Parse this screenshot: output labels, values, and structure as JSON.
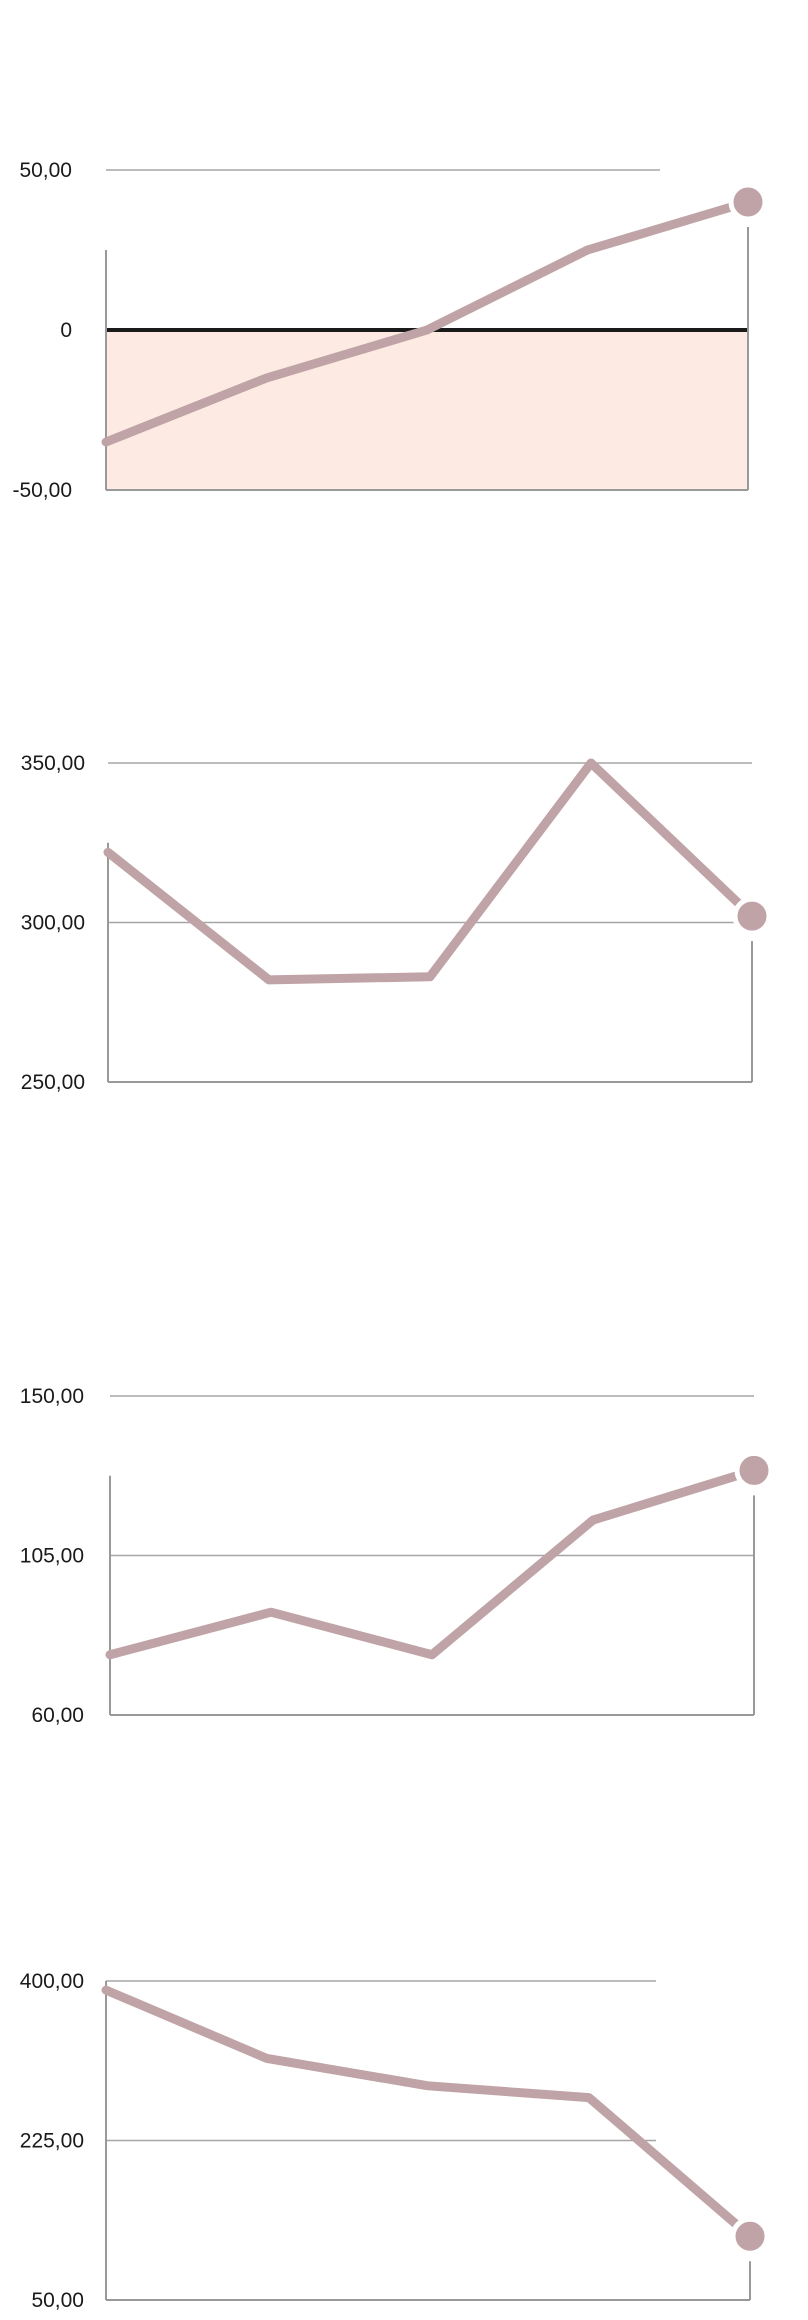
{
  "colors": {
    "line": "#bfa3a6",
    "grid": "#a6a6a6",
    "axis": "#999999",
    "zero_line": "#1a1a1a",
    "negative_fill": "#fdebe3",
    "tick_text": "#1a1a1a"
  },
  "chart_data": [
    {
      "type": "line",
      "x": [
        1,
        2,
        3,
        4,
        5
      ],
      "values": [
        -35,
        -15,
        0,
        25,
        40
      ],
      "yticks": [
        -50,
        0,
        50
      ],
      "ytick_labels": [
        "-50,00",
        "0",
        "50,00"
      ],
      "ylim": [
        -50,
        50
      ],
      "grid": true,
      "zero_line": true,
      "negative_area_shaded": true,
      "end_marker": true
    },
    {
      "type": "line",
      "x": [
        1,
        2,
        3,
        4,
        5
      ],
      "values": [
        322,
        282,
        283,
        350,
        302
      ],
      "yticks": [
        250,
        300,
        350
      ],
      "ytick_labels": [
        "250,00",
        "300,00",
        "350,00"
      ],
      "ylim": [
        250,
        350
      ],
      "grid": true,
      "end_marker": true
    },
    {
      "type": "line",
      "x": [
        1,
        2,
        3,
        4,
        5
      ],
      "values": [
        77,
        89,
        77,
        115,
        129
      ],
      "yticks": [
        60,
        105,
        150
      ],
      "ytick_labels": [
        "60,00",
        "105,00",
        "150,00"
      ],
      "ylim": [
        60,
        150
      ],
      "grid": true,
      "end_marker": true
    },
    {
      "type": "line",
      "x": [
        1,
        2,
        3,
        4,
        5
      ],
      "values": [
        390,
        315,
        285,
        272,
        120
      ],
      "yticks": [
        50,
        225,
        400
      ],
      "ytick_labels": [
        "50,00",
        "225,00",
        "400,00"
      ],
      "ylim": [
        50,
        400
      ],
      "grid": true,
      "end_marker": true
    }
  ]
}
